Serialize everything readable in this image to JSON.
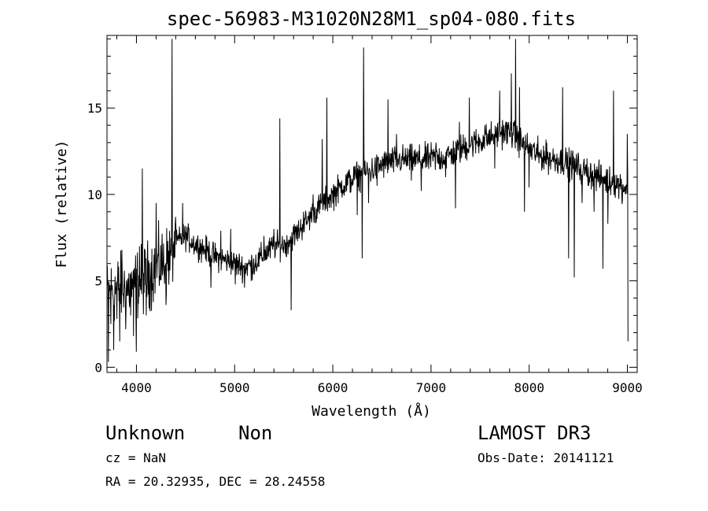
{
  "chart_data": {
    "type": "line",
    "title": "spec-56983-M31020N28M1_sp04-080.fits",
    "xlabel": "Wavelength (Å)",
    "ylabel": "Flux (relative)",
    "xlim": [
      3700,
      9100
    ],
    "ylim": [
      -0.3,
      19.2
    ],
    "xticks": [
      4000,
      5000,
      6000,
      7000,
      8000,
      9000
    ],
    "yticks": [
      0,
      5,
      10,
      15
    ],
    "grid": false,
    "legend": "none",
    "line_color": "#000000",
    "continuum": [
      [
        3700,
        4.2
      ],
      [
        3800,
        4.6
      ],
      [
        3900,
        4.5
      ],
      [
        4000,
        4.8
      ],
      [
        4100,
        5.2
      ],
      [
        4200,
        5.8
      ],
      [
        4300,
        6.1
      ],
      [
        4400,
        7.2
      ],
      [
        4500,
        7.6
      ],
      [
        4600,
        7.1
      ],
      [
        4700,
        6.8
      ],
      [
        4800,
        6.4
      ],
      [
        4900,
        6.2
      ],
      [
        5000,
        6.0
      ],
      [
        5100,
        5.8
      ],
      [
        5200,
        6.0
      ],
      [
        5300,
        6.5
      ],
      [
        5400,
        7.0
      ],
      [
        5500,
        7.1
      ],
      [
        5600,
        7.6
      ],
      [
        5700,
        8.2
      ],
      [
        5800,
        8.9
      ],
      [
        5900,
        9.5
      ],
      [
        6000,
        10.0
      ],
      [
        6100,
        10.5
      ],
      [
        6200,
        10.9
      ],
      [
        6300,
        11.2
      ],
      [
        6400,
        11.4
      ],
      [
        6500,
        11.7
      ],
      [
        6600,
        11.9
      ],
      [
        6700,
        12.0
      ],
      [
        6800,
        12.0
      ],
      [
        6900,
        12.0
      ],
      [
        7000,
        12.1
      ],
      [
        7100,
        12.1
      ],
      [
        7200,
        12.3
      ],
      [
        7300,
        12.6
      ],
      [
        7400,
        12.9
      ],
      [
        7500,
        13.1
      ],
      [
        7600,
        13.3
      ],
      [
        7700,
        13.6
      ],
      [
        7800,
        13.6
      ],
      [
        7900,
        13.1
      ],
      [
        8000,
        12.6
      ],
      [
        8100,
        12.3
      ],
      [
        8200,
        12.1
      ],
      [
        8300,
        12.0
      ],
      [
        8400,
        11.8
      ],
      [
        8500,
        11.6
      ],
      [
        8600,
        11.3
      ],
      [
        8700,
        11.0
      ],
      [
        8800,
        10.8
      ],
      [
        8900,
        10.6
      ],
      [
        9000,
        10.4
      ]
    ],
    "features": [
      [
        3715,
        0.3
      ],
      [
        3740,
        2.5
      ],
      [
        3770,
        1.0
      ],
      [
        3800,
        2.8
      ],
      [
        3830,
        1.5
      ],
      [
        3850,
        6.8
      ],
      [
        3890,
        2.2
      ],
      [
        3940,
        3.0
      ],
      [
        3970,
        1.8
      ],
      [
        4000,
        0.9
      ],
      [
        4030,
        7.0
      ],
      [
        4060,
        11.5
      ],
      [
        4101,
        3.0
      ],
      [
        4200,
        9.5
      ],
      [
        4300,
        3.6
      ],
      [
        4340,
        5.6
      ],
      [
        4362,
        19.0
      ],
      [
        4400,
        8.7
      ],
      [
        4470,
        9.5
      ],
      [
        4550,
        7.2
      ],
      [
        4640,
        6.2
      ],
      [
        4760,
        4.6
      ],
      [
        4861,
        7.9
      ],
      [
        4960,
        8.0
      ],
      [
        5007,
        4.8
      ],
      [
        5100,
        4.6
      ],
      [
        5170,
        5.0
      ],
      [
        5300,
        7.6
      ],
      [
        5400,
        8.0
      ],
      [
        5460,
        14.4
      ],
      [
        5530,
        6.4
      ],
      [
        5577,
        3.3
      ],
      [
        5650,
        8.5
      ],
      [
        5700,
        9.0
      ],
      [
        5800,
        10.0
      ],
      [
        5893,
        13.2
      ],
      [
        5940,
        15.6
      ],
      [
        6100,
        10.0
      ],
      [
        6250,
        8.8
      ],
      [
        6300,
        6.3
      ],
      [
        6313,
        18.5
      ],
      [
        6363,
        9.5
      ],
      [
        6450,
        10.5
      ],
      [
        6563,
        15.5
      ],
      [
        6650,
        13.5
      ],
      [
        6800,
        10.8
      ],
      [
        6900,
        10.2
      ],
      [
        7050,
        13.0
      ],
      [
        7150,
        11.0
      ],
      [
        7250,
        9.2
      ],
      [
        7290,
        14.2
      ],
      [
        7390,
        15.6
      ],
      [
        7550,
        14.0
      ],
      [
        7650,
        11.5
      ],
      [
        7700,
        16.0
      ],
      [
        7820,
        17.0
      ],
      [
        7860,
        19.0
      ],
      [
        7900,
        16.2
      ],
      [
        7950,
        9.0
      ],
      [
        8000,
        10.4
      ],
      [
        8100,
        11.8
      ],
      [
        8180,
        13.0
      ],
      [
        8340,
        16.2
      ],
      [
        8400,
        6.3
      ],
      [
        8440,
        12.4
      ],
      [
        8460,
        5.2
      ],
      [
        8540,
        9.5
      ],
      [
        8600,
        10.5
      ],
      [
        8662,
        9.0
      ],
      [
        8750,
        5.7
      ],
      [
        8800,
        8.3
      ],
      [
        8860,
        16.0
      ],
      [
        8950,
        9.6
      ],
      [
        9000,
        13.5
      ],
      [
        9010,
        1.5
      ]
    ]
  },
  "annotations": {
    "object_class": "Unknown",
    "object_subclass": "Non",
    "survey": "LAMOST DR3",
    "cz": "cz = NaN",
    "obs_date": "Obs-Date: 20141121",
    "radec": "RA =  20.32935, DEC =  28.24558"
  }
}
